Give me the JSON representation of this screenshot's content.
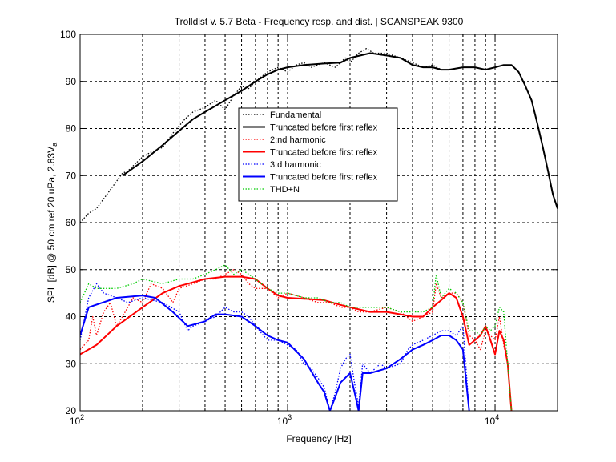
{
  "chart_data": {
    "type": "line",
    "title": "Trolldist v. 5.7 Beta - Frequency resp. and dist. | SCANSPEAK 9300",
    "xlabel": "Frequency [Hz]",
    "ylabel_main": "SPL [dB] @ 50 cm ref 20 uPa, 2.83V",
    "ylabel_sub": "a",
    "xscale": "log",
    "xlim": [
      100,
      20000
    ],
    "ylim": [
      20,
      100
    ],
    "grid": true,
    "legend_position": "center",
    "x_ticks": [
      {
        "base": "10",
        "exp": "2",
        "value": 100
      },
      {
        "base": "10",
        "exp": "3",
        "value": 1000
      },
      {
        "base": "10",
        "exp": "4",
        "value": 10000
      }
    ],
    "y_ticks": [
      "20",
      "30",
      "40",
      "50",
      "60",
      "70",
      "80",
      "90",
      "100"
    ],
    "series": [
      {
        "name": "Fundamental",
        "color": "#000000",
        "style": "dotted",
        "points": [
          [
            100,
            60
          ],
          [
            110,
            62
          ],
          [
            120,
            63
          ],
          [
            140,
            67
          ],
          [
            160,
            70.5
          ],
          [
            170,
            71
          ],
          [
            200,
            74
          ],
          [
            220,
            75
          ],
          [
            250,
            76
          ],
          [
            280,
            79
          ],
          [
            320,
            82
          ],
          [
            350,
            83.5
          ],
          [
            400,
            84.5
          ],
          [
            450,
            86
          ],
          [
            500,
            84
          ],
          [
            550,
            87
          ],
          [
            600,
            89
          ],
          [
            650,
            88.5
          ],
          [
            700,
            90
          ],
          [
            800,
            92
          ],
          [
            900,
            93
          ],
          [
            1000,
            92
          ],
          [
            1100,
            93.5
          ],
          [
            1200,
            94
          ],
          [
            1300,
            93
          ],
          [
            1500,
            94
          ],
          [
            1700,
            93
          ],
          [
            1900,
            95
          ],
          [
            2000,
            94
          ],
          [
            2200,
            96
          ],
          [
            2400,
            97
          ],
          [
            2600,
            96
          ],
          [
            3000,
            96
          ],
          [
            3500,
            95
          ],
          [
            4000,
            94
          ],
          [
            4500,
            93
          ],
          [
            5000,
            93.5
          ],
          [
            5500,
            92.5
          ],
          [
            6000,
            92.5
          ],
          [
            7000,
            93
          ],
          [
            8000,
            93
          ],
          [
            9000,
            92.5
          ],
          [
            10000,
            93
          ],
          [
            11000,
            93.5
          ],
          [
            12000,
            93.5
          ],
          [
            13000,
            92
          ],
          [
            14000,
            89
          ],
          [
            15000,
            86
          ],
          [
            16000,
            81
          ],
          [
            17000,
            76
          ],
          [
            18000,
            71
          ],
          [
            19000,
            66
          ],
          [
            20000,
            63
          ]
        ]
      },
      {
        "name": "Truncated before first reflex",
        "color": "#000000",
        "style": "solid",
        "points": [
          [
            160,
            70
          ],
          [
            200,
            73
          ],
          [
            250,
            76.5
          ],
          [
            300,
            79.5
          ],
          [
            350,
            82
          ],
          [
            400,
            83.5
          ],
          [
            500,
            86
          ],
          [
            600,
            88
          ],
          [
            700,
            90
          ],
          [
            800,
            91.5
          ],
          [
            900,
            92.5
          ],
          [
            1000,
            93
          ],
          [
            1200,
            93.5
          ],
          [
            1500,
            93.8
          ],
          [
            1800,
            94
          ],
          [
            2000,
            95
          ],
          [
            2500,
            96
          ],
          [
            3000,
            95.5
          ],
          [
            3500,
            95
          ],
          [
            4000,
            93.5
          ],
          [
            4500,
            93
          ],
          [
            5000,
            93
          ],
          [
            5500,
            92.5
          ],
          [
            6000,
            92.5
          ],
          [
            7000,
            93
          ],
          [
            8000,
            93
          ],
          [
            9000,
            92.5
          ],
          [
            10000,
            93
          ],
          [
            11000,
            93.5
          ],
          [
            12000,
            93.5
          ],
          [
            13000,
            92
          ],
          [
            14000,
            89
          ],
          [
            15000,
            86
          ],
          [
            16000,
            81
          ],
          [
            17000,
            76
          ],
          [
            18000,
            71
          ],
          [
            19000,
            66
          ],
          [
            20000,
            63
          ]
        ]
      },
      {
        "name": "2:nd harmonic",
        "color": "#ff0000",
        "style": "dotted",
        "points": [
          [
            100,
            33
          ],
          [
            110,
            35
          ],
          [
            115,
            40
          ],
          [
            120,
            36
          ],
          [
            130,
            41
          ],
          [
            140,
            43
          ],
          [
            150,
            38
          ],
          [
            160,
            40
          ],
          [
            180,
            44
          ],
          [
            200,
            43
          ],
          [
            220,
            47
          ],
          [
            250,
            46
          ],
          [
            280,
            43
          ],
          [
            300,
            46
          ],
          [
            350,
            47
          ],
          [
            400,
            48
          ],
          [
            450,
            48
          ],
          [
            500,
            49
          ],
          [
            550,
            50
          ],
          [
            600,
            49
          ],
          [
            650,
            47
          ],
          [
            700,
            46
          ],
          [
            800,
            46
          ],
          [
            900,
            44
          ],
          [
            1000,
            45
          ],
          [
            1200,
            44
          ],
          [
            1400,
            43
          ],
          [
            1600,
            43
          ],
          [
            1800,
            42
          ],
          [
            2000,
            42
          ],
          [
            2200,
            41
          ],
          [
            2500,
            41
          ],
          [
            3000,
            42
          ],
          [
            3500,
            41
          ],
          [
            4000,
            39
          ],
          [
            4500,
            40
          ],
          [
            5000,
            41
          ],
          [
            5200,
            47
          ],
          [
            5500,
            44
          ],
          [
            6000,
            45
          ],
          [
            6500,
            45
          ],
          [
            7000,
            43
          ],
          [
            7500,
            36
          ],
          [
            8000,
            35
          ],
          [
            8500,
            33
          ],
          [
            9000,
            37
          ],
          [
            9500,
            36
          ],
          [
            10000,
            35
          ],
          [
            10500,
            40
          ],
          [
            11000,
            34
          ],
          [
            11500,
            30
          ],
          [
            12000,
            20
          ]
        ]
      },
      {
        "name": "Truncated before first reflex",
        "color": "#ff0000",
        "style": "solid",
        "points": [
          [
            100,
            32
          ],
          [
            120,
            34
          ],
          [
            150,
            38
          ],
          [
            200,
            42
          ],
          [
            250,
            45
          ],
          [
            300,
            46.5
          ],
          [
            400,
            48
          ],
          [
            500,
            48.5
          ],
          [
            600,
            48.5
          ],
          [
            700,
            48
          ],
          [
            800,
            46
          ],
          [
            900,
            44.5
          ],
          [
            1000,
            44
          ],
          [
            1200,
            43.8
          ],
          [
            1500,
            43.5
          ],
          [
            1800,
            42.5
          ],
          [
            2000,
            42
          ],
          [
            2500,
            41
          ],
          [
            3000,
            41
          ],
          [
            3500,
            40.5
          ],
          [
            4000,
            40
          ],
          [
            4500,
            40
          ],
          [
            5000,
            42
          ],
          [
            5500,
            43.5
          ],
          [
            6000,
            45
          ],
          [
            6500,
            44
          ],
          [
            7000,
            40
          ],
          [
            7500,
            34
          ],
          [
            8000,
            35
          ],
          [
            8500,
            36
          ],
          [
            9000,
            38
          ],
          [
            9500,
            35
          ],
          [
            10000,
            32
          ],
          [
            10500,
            37
          ],
          [
            11000,
            35
          ],
          [
            11500,
            30
          ],
          [
            12000,
            20
          ]
        ]
      },
      {
        "name": "3:d harmonic",
        "color": "#0000ff",
        "style": "dotted",
        "points": [
          [
            100,
            35
          ],
          [
            110,
            44
          ],
          [
            120,
            47
          ],
          [
            130,
            45
          ],
          [
            150,
            44
          ],
          [
            170,
            43
          ],
          [
            200,
            44
          ],
          [
            250,
            43
          ],
          [
            300,
            41
          ],
          [
            330,
            37
          ],
          [
            350,
            38
          ],
          [
            400,
            39
          ],
          [
            450,
            40
          ],
          [
            500,
            42
          ],
          [
            550,
            41
          ],
          [
            600,
            41
          ],
          [
            650,
            40
          ],
          [
            700,
            38
          ],
          [
            800,
            35
          ],
          [
            900,
            35
          ],
          [
            1000,
            34
          ],
          [
            1100,
            33
          ],
          [
            1200,
            30
          ],
          [
            1300,
            29
          ],
          [
            1400,
            27
          ],
          [
            1500,
            25
          ],
          [
            1600,
            20
          ],
          [
            1700,
            24
          ],
          [
            1800,
            29
          ],
          [
            1900,
            31
          ],
          [
            2000,
            32
          ],
          [
            2100,
            26
          ],
          [
            2200,
            21
          ],
          [
            2300,
            30
          ],
          [
            2500,
            28
          ],
          [
            2800,
            30
          ],
          [
            3000,
            29
          ],
          [
            3500,
            30
          ],
          [
            3800,
            33
          ],
          [
            4000,
            34
          ],
          [
            4500,
            35
          ],
          [
            5000,
            36
          ],
          [
            5500,
            37
          ],
          [
            6000,
            37
          ],
          [
            6500,
            36
          ],
          [
            7000,
            38
          ],
          [
            7500,
            20
          ]
        ]
      },
      {
        "name": "Truncated before first reflex",
        "color": "#0000ff",
        "style": "solid",
        "points": [
          [
            100,
            36
          ],
          [
            110,
            42
          ],
          [
            150,
            44
          ],
          [
            200,
            44.5
          ],
          [
            230,
            44
          ],
          [
            280,
            41
          ],
          [
            330,
            38
          ],
          [
            400,
            39
          ],
          [
            450,
            40.5
          ],
          [
            500,
            40.5
          ],
          [
            600,
            40
          ],
          [
            700,
            38
          ],
          [
            800,
            36
          ],
          [
            900,
            35
          ],
          [
            1000,
            34.5
          ],
          [
            1200,
            31
          ],
          [
            1400,
            26
          ],
          [
            1500,
            24
          ],
          [
            1600,
            20
          ],
          [
            1700,
            23
          ],
          [
            1800,
            26
          ],
          [
            2000,
            28
          ],
          [
            2100,
            24
          ],
          [
            2200,
            20
          ],
          [
            2300,
            28
          ],
          [
            2500,
            28
          ],
          [
            3000,
            29
          ],
          [
            3500,
            31
          ],
          [
            4000,
            33
          ],
          [
            4500,
            34
          ],
          [
            5000,
            35
          ],
          [
            5500,
            36
          ],
          [
            6000,
            36
          ],
          [
            6500,
            35
          ],
          [
            7000,
            33
          ],
          [
            7500,
            20
          ]
        ]
      },
      {
        "name": "THD+N",
        "color": "#00cc00",
        "style": "dotted",
        "points": [
          [
            100,
            43
          ],
          [
            110,
            47
          ],
          [
            120,
            46
          ],
          [
            150,
            46
          ],
          [
            180,
            47
          ],
          [
            200,
            48
          ],
          [
            250,
            47
          ],
          [
            300,
            48
          ],
          [
            350,
            48
          ],
          [
            400,
            49
          ],
          [
            450,
            50
          ],
          [
            500,
            51
          ],
          [
            550,
            49
          ],
          [
            600,
            50
          ],
          [
            650,
            49
          ],
          [
            700,
            48
          ],
          [
            800,
            46
          ],
          [
            900,
            45
          ],
          [
            1000,
            45
          ],
          [
            1200,
            44
          ],
          [
            1400,
            44
          ],
          [
            1600,
            43
          ],
          [
            1800,
            43
          ],
          [
            2000,
            42
          ],
          [
            2500,
            42
          ],
          [
            3000,
            42
          ],
          [
            3500,
            41
          ],
          [
            4000,
            41
          ],
          [
            4500,
            41
          ],
          [
            5000,
            42
          ],
          [
            5200,
            49
          ],
          [
            5500,
            44
          ],
          [
            6000,
            46
          ],
          [
            6500,
            45
          ],
          [
            7000,
            43
          ],
          [
            7500,
            37
          ],
          [
            8000,
            37
          ],
          [
            8500,
            36
          ],
          [
            9000,
            38
          ],
          [
            9500,
            37
          ],
          [
            10000,
            38
          ],
          [
            10500,
            42
          ],
          [
            11000,
            41
          ],
          [
            11500,
            30
          ],
          [
            12000,
            20
          ]
        ]
      }
    ]
  }
}
